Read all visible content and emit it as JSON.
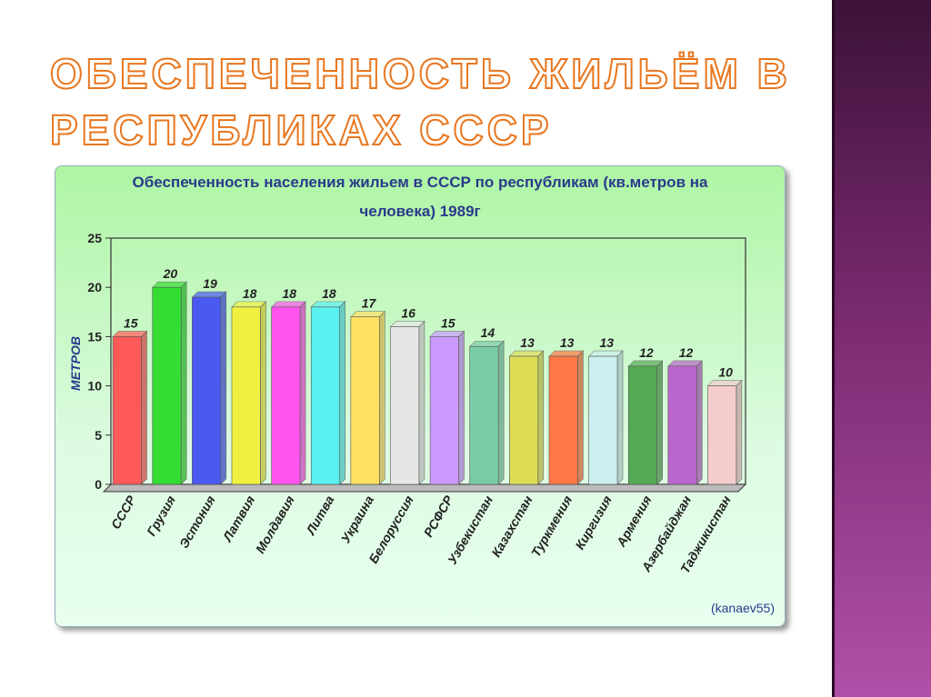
{
  "slide": {
    "title_lines": [
      "ОБЕСПЕЧЕННОСТЬ ЖИЛЬЁМ В",
      "РЕСПУБЛИКАХ СССР"
    ]
  },
  "chart_data": {
    "type": "bar",
    "title": [
      "Обеспеченность населения жильем в СССР по республикам (кв.метров на",
      "человека) 1989г"
    ],
    "y_label": "МЕТРОВ",
    "credit": "(kanaev55)",
    "categories": [
      "СССР",
      "Грузия",
      "Эстония",
      "Латвия",
      "Молдавия",
      "Литва",
      "Украина",
      "Белоруссия",
      "РСФСР",
      "Узбекистан",
      "Казахстан",
      "Туркмения",
      "Киргизия",
      "Армения",
      "Азербайджан",
      "Таджикистан"
    ],
    "values": [
      15,
      20,
      19,
      18,
      18,
      18,
      17,
      16,
      15,
      14,
      13,
      13,
      13,
      12,
      12,
      10
    ],
    "colors": [
      "#ff5a5a",
      "#33dd33",
      "#4a5af0",
      "#f0f040",
      "#ff55ee",
      "#5af0f0",
      "#ffe060",
      "#e6e6e6",
      "#cc99ff",
      "#7acca8",
      "#dddd55",
      "#ff7744",
      "#cceeee",
      "#55aa55",
      "#bb66cc",
      "#f4cccc"
    ],
    "ylim": [
      0,
      25
    ],
    "yticks": [
      0,
      5,
      10,
      15,
      20,
      25
    ]
  }
}
